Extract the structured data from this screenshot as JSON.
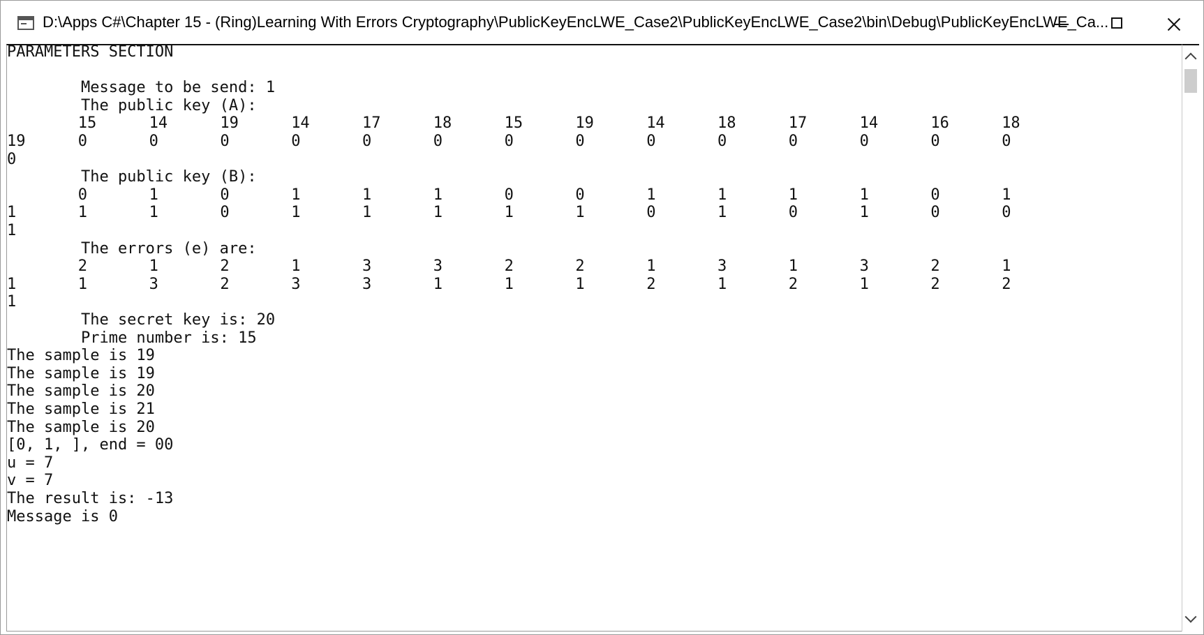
{
  "window": {
    "title": "D:\\Apps C#\\Chapter 15 - (Ring)Learning With Errors Cryptography\\PublicKeyEncLWE_Case2\\PublicKeyEncLWE_Case2\\bin\\Debug\\PublicKeyEncLWE_Ca..."
  },
  "console": {
    "lines": [
      "PARAMETERS SECTION",
      "",
      "        Message to be send: 1",
      "        The public key (A):",
      "",
      "",
      "",
      "        The public key (B):",
      "",
      "",
      "",
      "        The errors (e) are:",
      "",
      "",
      "",
      "        The secret key is: 20",
      "        Prime number is: 15",
      "The sample is 19",
      "The sample is 19",
      "The sample is 20",
      "The sample is 21",
      "The sample is 20",
      "[0, 1, ], end = 00",
      "u = 7",
      "v = 7",
      "The result is: -13",
      "Message is 0"
    ],
    "public_key_a": {
      "row1": [
        "15",
        "14",
        "19",
        "14",
        "17",
        "18",
        "15",
        "19",
        "14",
        "18",
        "17",
        "14",
        "16",
        "18"
      ],
      "row2": [
        "19",
        "0",
        "0",
        "0",
        "0",
        "0",
        "0",
        "0",
        "0",
        "0",
        "0",
        "0",
        "0",
        "0",
        "0"
      ],
      "row3": [
        "0"
      ]
    },
    "public_key_b": {
      "row1": [
        "0",
        "1",
        "0",
        "1",
        "1",
        "1",
        "0",
        "0",
        "1",
        "1",
        "1",
        "1",
        "0",
        "1"
      ],
      "row2": [
        "1",
        "1",
        "1",
        "0",
        "1",
        "1",
        "1",
        "1",
        "1",
        "0",
        "1",
        "0",
        "1",
        "0",
        "0"
      ],
      "row3": [
        "1"
      ]
    },
    "errors_e": {
      "row1": [
        "2",
        "1",
        "2",
        "1",
        "3",
        "3",
        "2",
        "2",
        "1",
        "3",
        "1",
        "3",
        "2",
        "1"
      ],
      "row2": [
        "1",
        "1",
        "3",
        "2",
        "3",
        "3",
        "1",
        "1",
        "1",
        "2",
        "1",
        "2",
        "1",
        "2",
        "2"
      ],
      "row3": [
        "1"
      ]
    }
  }
}
